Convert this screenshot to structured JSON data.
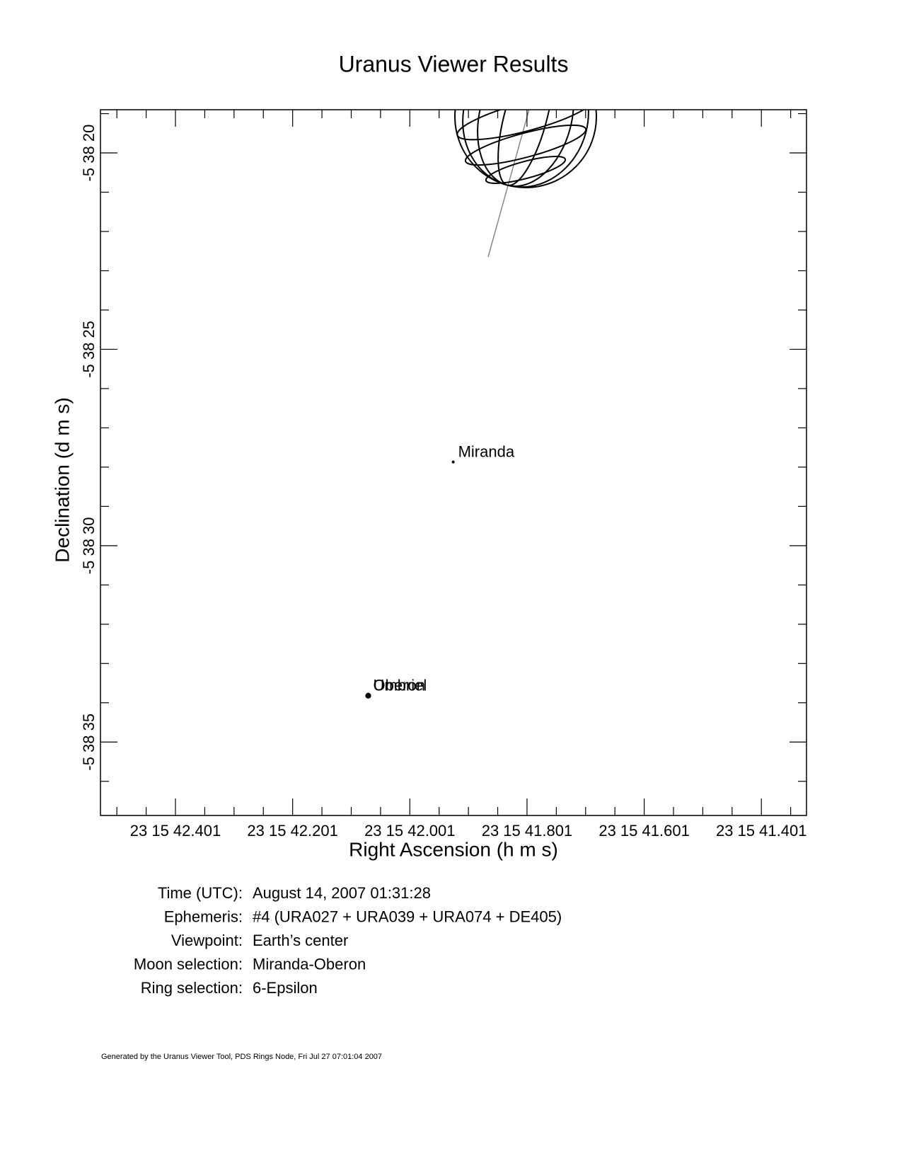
{
  "chart_data": {
    "type": "scatter",
    "title": "Uranus Viewer Results",
    "x_label": "Right Ascension (h m s)",
    "y_label": "Declination (d m s)",
    "labels": [
      "Miranda",
      "Umbriel",
      "Oberon"
    ],
    "x": [
      41.927,
      42.072,
      42.072
    ],
    "values": [
      27.87,
      33.82,
      33.82
    ],
    "color": "#000000",
    "xlim": [
      42.529,
      41.324
    ],
    "ylim": [
      36.87,
      18.9
    ],
    "xticks": [
      {
        "value": 42.401,
        "label": "23 15 42.401"
      },
      {
        "value": 42.201,
        "label": "23 15 42.201"
      },
      {
        "value": 42.001,
        "label": "23 15 42.001"
      },
      {
        "value": 41.801,
        "label": "23 15 41.801"
      },
      {
        "value": 41.601,
        "label": "23 15 41.601"
      },
      {
        "value": 41.401,
        "label": "23 15 41.401"
      }
    ],
    "xminorticks": [
      42.501,
      42.451,
      42.351,
      42.301,
      42.251,
      42.151,
      42.101,
      42.051,
      41.951,
      41.901,
      41.851,
      41.751,
      41.701,
      41.651,
      41.551,
      41.501,
      41.451,
      41.351
    ],
    "yticks": [
      {
        "value": 20,
        "label": "-5 38 20"
      },
      {
        "value": 25,
        "label": "-5 38 25"
      },
      {
        "value": 30,
        "label": "-5 38 30"
      },
      {
        "value": 35,
        "label": "-5 38 35"
      }
    ],
    "yminorticks": [
      19,
      21,
      22,
      23,
      24,
      26,
      27,
      28,
      29,
      31,
      32,
      33,
      34,
      36
    ],
    "info": [
      {
        "label": "Time (UTC):",
        "value": "August 14, 2007 01:31:28"
      },
      {
        "label": "Ephemeris:",
        "value": "#4 (URA027 + URA039 + URA074 + DE405)"
      },
      {
        "label": "Viewpoint:",
        "value": "Earth’s center"
      },
      {
        "label": "Moon selection:",
        "value": "Miranda-Oberon"
      },
      {
        "label": "Ring selection:",
        "value": "6-Epsilon"
      }
    ],
    "footer": "Generated by the Uranus Viewer Tool, PDS Rings Node, Fri Jul 27 07:01:04 2007"
  }
}
